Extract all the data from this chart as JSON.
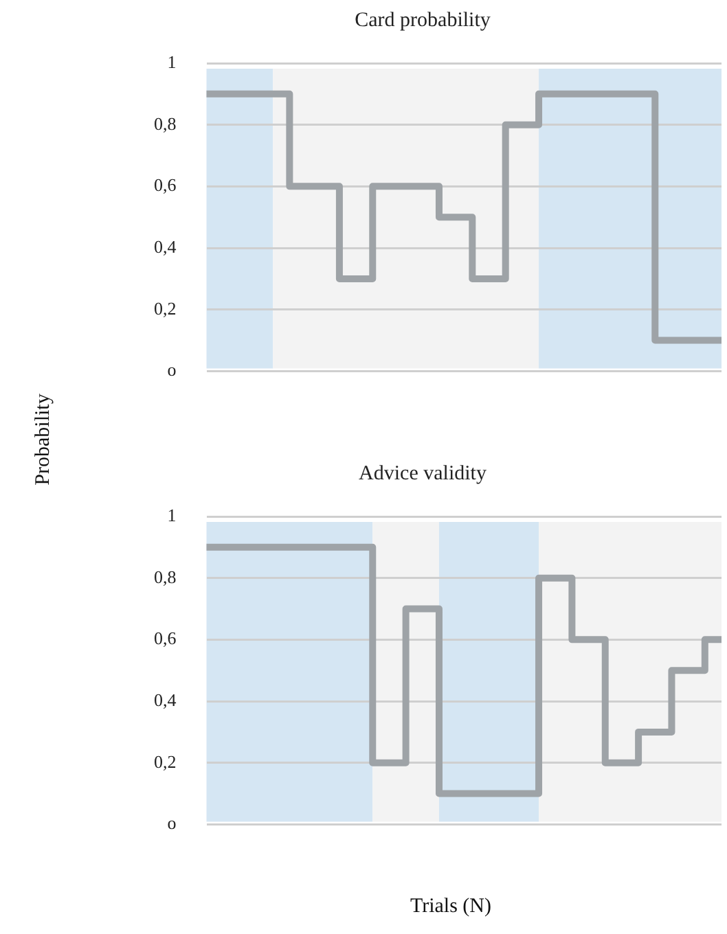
{
  "chart_data": [
    {
      "type": "step",
      "title": "Card probability",
      "ylabel": "Probability",
      "categories": [
        null,
        null,
        null,
        null,
        null,
        null,
        null,
        null,
        null,
        null,
        null,
        null,
        null,
        null,
        null,
        null,
        null,
        null,
        null,
        null,
        null,
        null,
        null,
        null,
        null,
        null,
        null,
        null,
        null,
        null,
        null,
        null
      ],
      "series": [
        {
          "color": "#9ea3a7",
          "values": [
            0.9,
            0.9,
            0.9,
            0.9,
            0.9,
            0.6,
            0.6,
            0.6,
            0.3,
            0.3,
            0.6,
            0.6,
            0.6,
            0.6,
            0.5,
            0.5,
            0.3,
            0.3,
            0.8,
            0.8,
            0.9,
            0.9,
            0.9,
            0.9,
            0.9,
            0.9,
            0.9,
            0.1,
            0.1,
            0.1,
            0.1,
            0.1
          ]
        }
      ],
      "ylim": [
        0,
        1
      ],
      "yticks": [
        {
          "value": 0,
          "label": "o"
        },
        {
          "value": 0.2,
          "label": "0,2"
        },
        {
          "value": 0.4,
          "label": "0,4"
        },
        {
          "value": 0.6,
          "label": "0,6"
        },
        {
          "value": 0.8,
          "label": "0,8"
        },
        {
          "value": 1,
          "label": "1"
        }
      ],
      "grid": "y",
      "legend": false,
      "marker": "none",
      "tick_labels": "y"
    },
    {
      "type": "step",
      "title": "Advice validity",
      "xlabel": "Trials (N)",
      "categories": [
        null,
        null,
        null,
        null,
        null,
        null,
        null,
        null,
        null,
        null,
        null,
        null,
        null,
        null,
        null,
        null,
        null,
        null,
        null,
        null,
        null,
        null,
        null,
        null,
        null,
        null,
        null,
        null,
        null,
        null,
        null,
        null
      ],
      "series": [
        {
          "color": "#9ea3a7",
          "values": [
            0.9,
            0.9,
            0.9,
            0.9,
            0.9,
            0.9,
            0.9,
            0.9,
            0.9,
            0.9,
            0.2,
            0.2,
            0.7,
            0.7,
            0.1,
            0.1,
            0.1,
            0.1,
            0.1,
            0.1,
            0.8,
            0.8,
            0.6,
            0.6,
            0.2,
            0.2,
            0.3,
            0.3,
            0.5,
            0.5,
            0.6,
            0.6
          ]
        }
      ],
      "ylim": [
        0,
        1
      ],
      "yticks": [
        {
          "value": 0,
          "label": "o"
        },
        {
          "value": 0.2,
          "label": "0,2"
        },
        {
          "value": 0.4,
          "label": "0,4"
        },
        {
          "value": 0.6,
          "label": "0,6"
        },
        {
          "value": 0.8,
          "label": "0,8"
        },
        {
          "value": 1,
          "label": "1"
        }
      ],
      "grid": "y",
      "legend": false,
      "marker": "none",
      "tick_labels": "y"
    }
  ]
}
